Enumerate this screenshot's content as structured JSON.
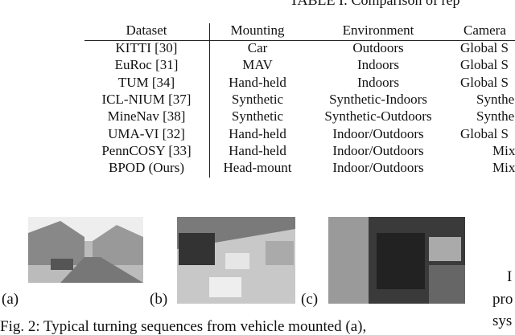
{
  "table": {
    "title": "TABLE I: Comparison of rep",
    "headers": [
      "Dataset",
      "Mounting",
      "Environment",
      "Camera"
    ],
    "rows": [
      [
        "KITTI [30]",
        "Car",
        "Outdoors",
        "Global S"
      ],
      [
        "EuRoc [31]",
        "MAV",
        "Indoors",
        "Global S"
      ],
      [
        "TUM [34]",
        "Hand-held",
        "Indoors",
        "Global S"
      ],
      [
        "ICL-NIUM [37]",
        "Synthetic",
        "Synthetic-Indoors",
        "Synthe"
      ],
      [
        "MineNav [38]",
        "Synthetic",
        "Synthetic-Outdoors",
        "Synthe"
      ],
      [
        "UMA-VI [32]",
        "Hand-held",
        "Indoor/Outdoors",
        "Global S"
      ],
      [
        "PennCOSY [33]",
        "Hand-held",
        "Indoor/Outdoors",
        "Mix"
      ],
      [
        "BPOD (Ours)",
        "Head-mount",
        "Indoor/Outdoors",
        "Mix"
      ]
    ]
  },
  "figure": {
    "panels": [
      "(a)",
      "(b)",
      "(c)"
    ],
    "caption": "Fig. 2: Typical turning sequences from vehicle mounted (a),"
  },
  "side_text": [
    "I",
    "pro",
    "sys"
  ]
}
